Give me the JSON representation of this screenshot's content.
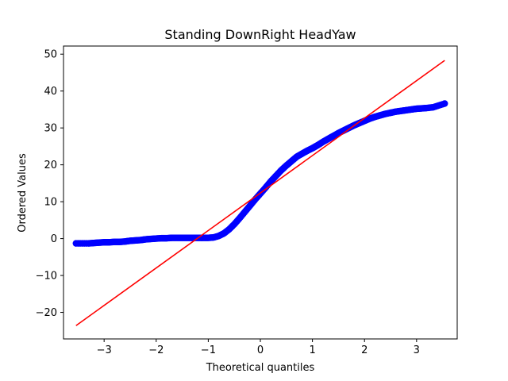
{
  "chart_data": {
    "type": "scatter",
    "title": "Standing DownRight HeadYaw",
    "xlabel": "Theoretical quantiles",
    "ylabel": "Ordered Values",
    "xlim": [
      -3.78,
      3.78
    ],
    "ylim": [
      -27.2,
      52.2
    ],
    "xticks": [
      -3,
      -2,
      -1,
      0,
      1,
      2,
      3
    ],
    "xtick_labels": [
      "−3",
      "−2",
      "−1",
      "0",
      "1",
      "2",
      "3"
    ],
    "yticks": [
      -20,
      -10,
      0,
      10,
      20,
      30,
      40,
      50
    ],
    "ytick_labels": [
      "−20",
      "−10",
      "0",
      "10",
      "20",
      "30",
      "40",
      "50"
    ],
    "grid": false,
    "series": [
      {
        "kind": "points",
        "color": "#0000ff",
        "x": [
          -3.54,
          -3.3,
          -3.2,
          -3.1,
          -3.0,
          -2.9,
          -2.8,
          -2.7,
          -2.6,
          -2.5,
          -2.4,
          -2.3,
          -2.2,
          -2.1,
          -2.0,
          -1.9,
          -1.8,
          -1.7,
          -1.6,
          -1.5,
          -1.4,
          -1.3,
          -1.2,
          -1.1,
          -1.0,
          -0.9,
          -0.8,
          -0.7,
          -0.6,
          -0.5,
          -0.4,
          -0.3,
          -0.2,
          -0.1,
          0.0,
          0.1,
          0.2,
          0.3,
          0.4,
          0.5,
          0.6,
          0.7,
          0.8,
          0.9,
          1.0,
          1.1,
          1.2,
          1.3,
          1.4,
          1.5,
          1.6,
          1.7,
          1.8,
          1.9,
          2.0,
          2.1,
          2.2,
          2.3,
          2.4,
          2.5,
          2.6,
          2.7,
          2.8,
          2.9,
          3.0,
          3.1,
          3.2,
          3.32,
          3.54
        ],
        "y": [
          -1.3,
          -1.3,
          -1.2,
          -1.1,
          -1.0,
          -1.0,
          -0.9,
          -0.9,
          -0.8,
          -0.6,
          -0.5,
          -0.4,
          -0.2,
          -0.1,
          0.0,
          0.1,
          0.1,
          0.2,
          0.2,
          0.2,
          0.2,
          0.2,
          0.2,
          0.2,
          0.2,
          0.3,
          0.7,
          1.4,
          2.5,
          3.9,
          5.5,
          7.2,
          8.9,
          10.6,
          12.2,
          13.8,
          15.5,
          17.0,
          18.5,
          19.8,
          21.0,
          22.2,
          23.0,
          23.8,
          24.5,
          25.3,
          26.2,
          27.0,
          27.8,
          28.6,
          29.3,
          30.0,
          30.7,
          31.3,
          31.9,
          32.5,
          33.0,
          33.4,
          33.8,
          34.1,
          34.4,
          34.6,
          34.8,
          35.0,
          35.2,
          35.3,
          35.4,
          35.6,
          36.6
        ]
      },
      {
        "kind": "fit-line",
        "color": "#ff0000",
        "x": [
          -3.54,
          3.54
        ],
        "y": [
          -23.6,
          48.3
        ]
      }
    ]
  }
}
